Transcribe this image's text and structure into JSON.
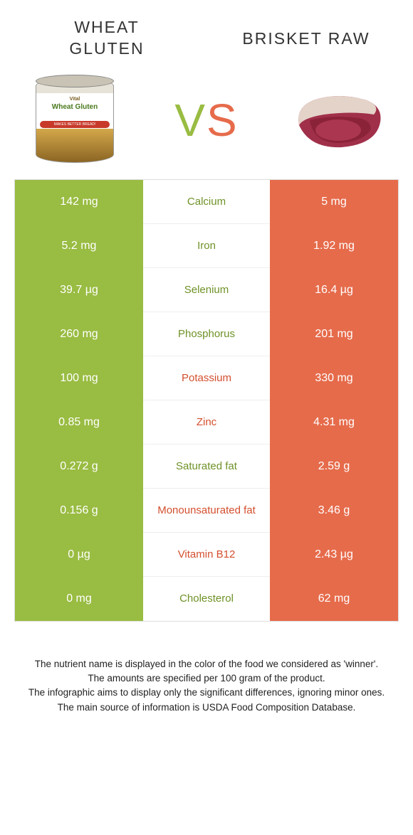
{
  "colors": {
    "left": "#99bc42",
    "right": "#e66b4b",
    "vs_left": "#99bc42",
    "vs_right": "#e66b4b",
    "label_left": "#6f9228",
    "label_right": "#d34f2e"
  },
  "header": {
    "left_line1": "Wheat",
    "left_line2": "gluten",
    "right": "Brisket raw"
  },
  "vs": "VS",
  "rows": [
    {
      "left": "142 mg",
      "label": "Calcium",
      "right": "5 mg",
      "winner": "left"
    },
    {
      "left": "5.2 mg",
      "label": "Iron",
      "right": "1.92 mg",
      "winner": "left"
    },
    {
      "left": "39.7 µg",
      "label": "Selenium",
      "right": "16.4 µg",
      "winner": "left"
    },
    {
      "left": "260 mg",
      "label": "Phosphorus",
      "right": "201 mg",
      "winner": "left"
    },
    {
      "left": "100 mg",
      "label": "Potassium",
      "right": "330 mg",
      "winner": "right"
    },
    {
      "left": "0.85 mg",
      "label": "Zinc",
      "right": "4.31 mg",
      "winner": "right"
    },
    {
      "left": "0.272 g",
      "label": "Saturated fat",
      "right": "2.59 g",
      "winner": "left"
    },
    {
      "left": "0.156 g",
      "label": "Monounsaturated fat",
      "right": "3.46 g",
      "winner": "right"
    },
    {
      "left": "0 µg",
      "label": "Vitamin B12",
      "right": "2.43 µg",
      "winner": "right"
    },
    {
      "left": "0 mg",
      "label": "Cholesterol",
      "right": "62 mg",
      "winner": "left"
    }
  ],
  "footer": {
    "l1": "The nutrient name is displayed in the color of the food we considered as 'winner'.",
    "l2": "The amounts are specified per 100 gram of the product.",
    "l3": "The infographic aims to display only the significant differences, ignoring minor ones.",
    "l4": "The main source of information is USDA Food Composition Database."
  },
  "can": {
    "top_text": "Vital",
    "main_text": "Wheat Gluten",
    "strip_text": "MAKES BETTER BREAD!"
  }
}
